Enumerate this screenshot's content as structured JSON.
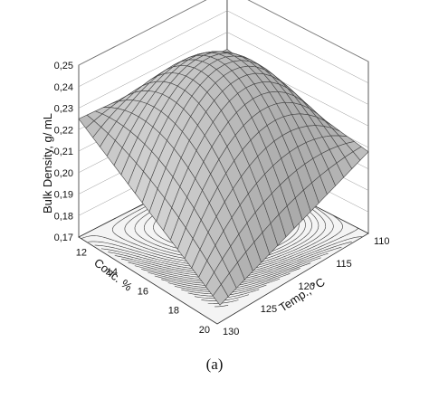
{
  "chart_data": {
    "type": "surface3d",
    "title": "",
    "zlabel": "Bulk Density, g/ mL",
    "xlabel": "Temp., °C",
    "ylabel": "Conc. %",
    "z_ticks": [
      "0,17",
      "0,18",
      "0,19",
      "0,20",
      "0,21",
      "0,22",
      "0,23",
      "0,24",
      "0,25"
    ],
    "x_ticks": [
      "110",
      "115",
      "120",
      "125",
      "130"
    ],
    "y_ticks": [
      "12",
      "14",
      "16",
      "18",
      "20"
    ],
    "x_range": [
      110,
      130
    ],
    "y_range": [
      11,
      20
    ],
    "z_range": [
      0.17,
      0.25
    ],
    "corner_values": [
      {
        "temp": 110,
        "conc": 11,
        "density": 0.222
      },
      {
        "temp": 110,
        "conc": 20,
        "density": 0.225
      },
      {
        "temp": 130,
        "conc": 20,
        "density": 0.172
      },
      {
        "temp": 130,
        "conc": 11,
        "density": 0.208
      }
    ],
    "peak": {
      "temp": 116,
      "conc": 15,
      "density": 0.245
    },
    "surface_color": "#bfbfbf",
    "grid_color": "#444444",
    "floor_contours": true
  },
  "caption": "(a)"
}
